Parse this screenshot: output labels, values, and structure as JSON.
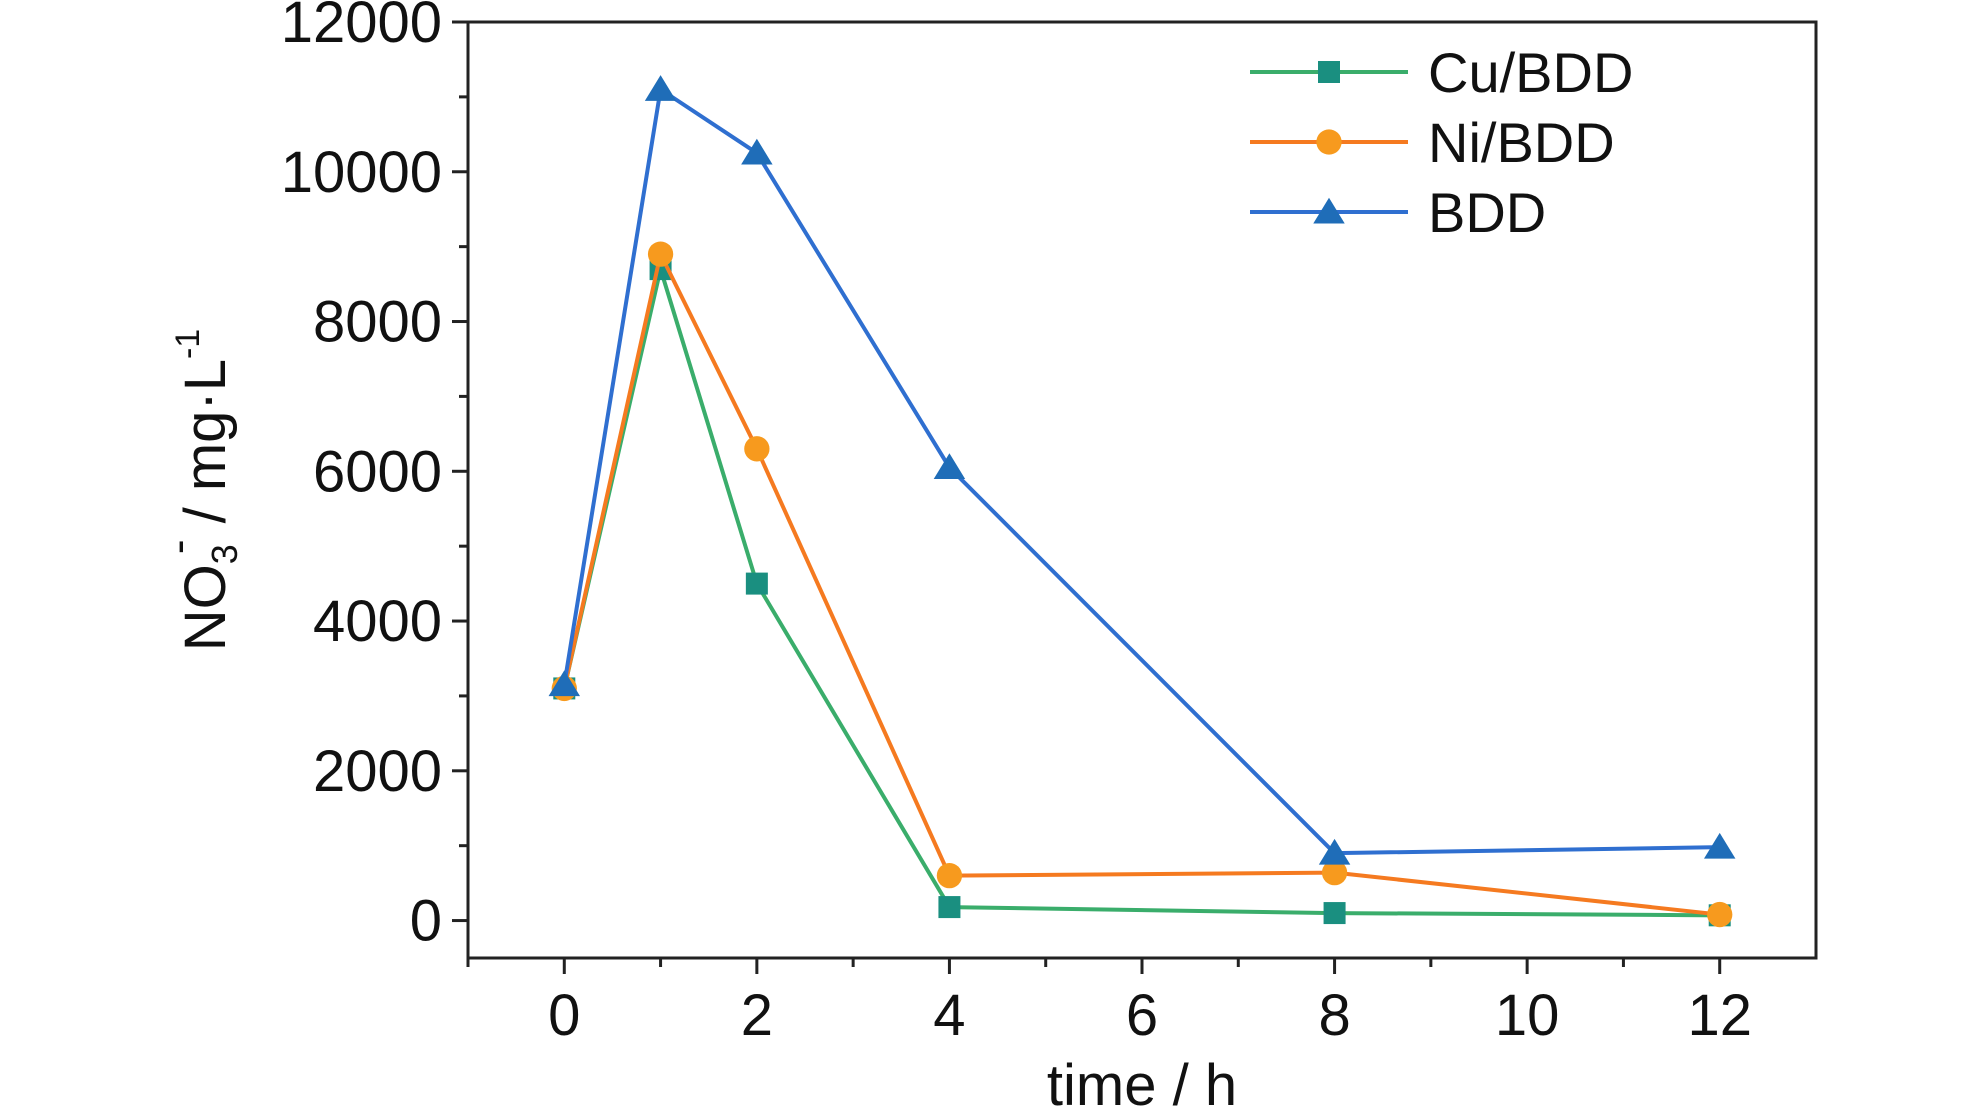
{
  "chart_data": {
    "type": "line",
    "title": "",
    "xlabel": "time / h",
    "ylabel": {
      "main": "NO",
      "subscript": "3",
      "superscript": "-",
      "unit": " / mg·L",
      "unit_superscript": "-1"
    },
    "xlim": [
      -1,
      13
    ],
    "ylim": [
      -500,
      12000
    ],
    "x_ticks": [
      0,
      2,
      4,
      6,
      8,
      10,
      12
    ],
    "y_ticks": [
      0,
      2000,
      4000,
      6000,
      8000,
      10000,
      12000
    ],
    "legend_position": "top-right",
    "grid": false,
    "series": [
      {
        "name": "Cu/BDD",
        "color": "#3aad6b",
        "marker_color": "#1a8f80",
        "marker": "square",
        "x": [
          0,
          1,
          2,
          4,
          8,
          12
        ],
        "y": [
          3100,
          8700,
          4500,
          180,
          100,
          70
        ]
      },
      {
        "name": "Ni/BDD",
        "color": "#f57a20",
        "marker_color": "#f79a1e",
        "marker": "circle",
        "x": [
          0,
          1,
          2,
          4,
          8,
          12
        ],
        "y": [
          3100,
          8900,
          6300,
          600,
          640,
          80
        ]
      },
      {
        "name": "BDD",
        "color": "#2f6fd0",
        "marker_color": "#1f6db8",
        "marker": "triangle",
        "x": [
          0,
          1,
          2,
          4,
          8,
          12
        ],
        "y": [
          3150,
          11100,
          10250,
          6050,
          900,
          980
        ]
      }
    ]
  }
}
